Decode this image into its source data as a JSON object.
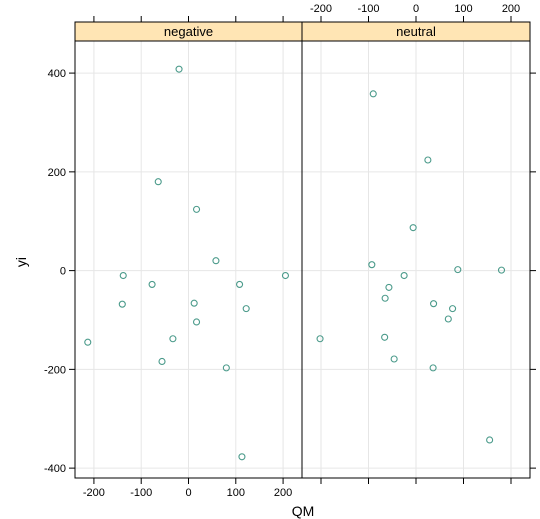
{
  "chart_data": {
    "type": "scatter",
    "title": "",
    "xlabel": "QM",
    "ylabel": "yi",
    "xlim": [
      -240,
      240
    ],
    "ylim": [
      -420,
      465
    ],
    "x_ticks": [
      -200,
      -100,
      0,
      100,
      200
    ],
    "y_ticks": [
      -400,
      -200,
      0,
      200,
      400
    ],
    "grid": true,
    "layout": "two panels side by side, shared y axis",
    "point_color": "#4a9a8a",
    "strip_color": "#ffe5b4",
    "panels": [
      {
        "name": "negative",
        "points": [
          {
            "x": -20,
            "y": 408
          },
          {
            "x": -64,
            "y": 180
          },
          {
            "x": 17,
            "y": 124
          },
          {
            "x": 58,
            "y": 20
          },
          {
            "x": -138,
            "y": -10
          },
          {
            "x": -77,
            "y": -28
          },
          {
            "x": 108,
            "y": -28
          },
          {
            "x": 205,
            "y": -10
          },
          {
            "x": -140,
            "y": -68
          },
          {
            "x": 12,
            "y": -66
          },
          {
            "x": 122,
            "y": -77
          },
          {
            "x": 17,
            "y": -104
          },
          {
            "x": -33,
            "y": -138
          },
          {
            "x": -213,
            "y": -145
          },
          {
            "x": -56,
            "y": -184
          },
          {
            "x": 80,
            "y": -197
          },
          {
            "x": 113,
            "y": -377
          }
        ]
      },
      {
        "name": "neutral",
        "points": [
          {
            "x": -90,
            "y": 358
          },
          {
            "x": 25,
            "y": 224
          },
          {
            "x": -6,
            "y": 87
          },
          {
            "x": -93,
            "y": 12
          },
          {
            "x": 88,
            "y": 2
          },
          {
            "x": 180,
            "y": 1
          },
          {
            "x": -25,
            "y": -10
          },
          {
            "x": -57,
            "y": -34
          },
          {
            "x": -65,
            "y": -56
          },
          {
            "x": 37,
            "y": -67
          },
          {
            "x": 77,
            "y": -77
          },
          {
            "x": 68,
            "y": -98
          },
          {
            "x": -202,
            "y": -138
          },
          {
            "x": -66,
            "y": -135
          },
          {
            "x": -46,
            "y": -179
          },
          {
            "x": 36,
            "y": -197
          },
          {
            "x": 155,
            "y": -343
          }
        ]
      }
    ]
  }
}
